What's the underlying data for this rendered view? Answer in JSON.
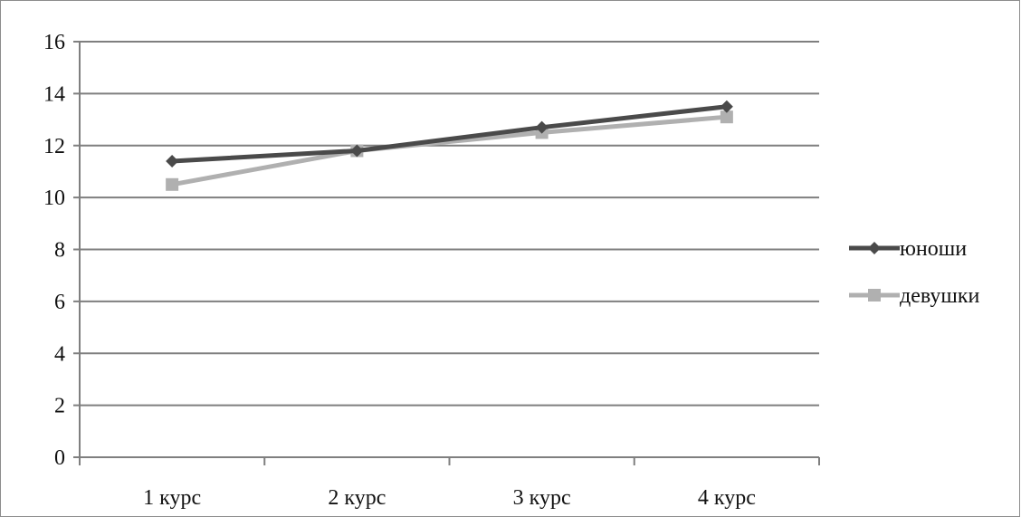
{
  "chart_data": {
    "type": "line",
    "categories": [
      "1 курс",
      "2 курс",
      "3 курс",
      "4 курс"
    ],
    "series": [
      {
        "name": "юноши",
        "values": [
          11.4,
          11.8,
          12.7,
          13.5
        ],
        "color": "#4a4a4a",
        "marker": "diamond"
      },
      {
        "name": "девушки",
        "values": [
          10.5,
          11.8,
          12.5,
          13.1
        ],
        "color": "#b0b0b0",
        "marker": "square"
      }
    ],
    "ylim": [
      0,
      16
    ],
    "yticks": [
      "0",
      "2",
      "4",
      "6",
      "8",
      "10",
      "12",
      "14",
      "16"
    ],
    "grid": true,
    "legend_position": "right"
  }
}
